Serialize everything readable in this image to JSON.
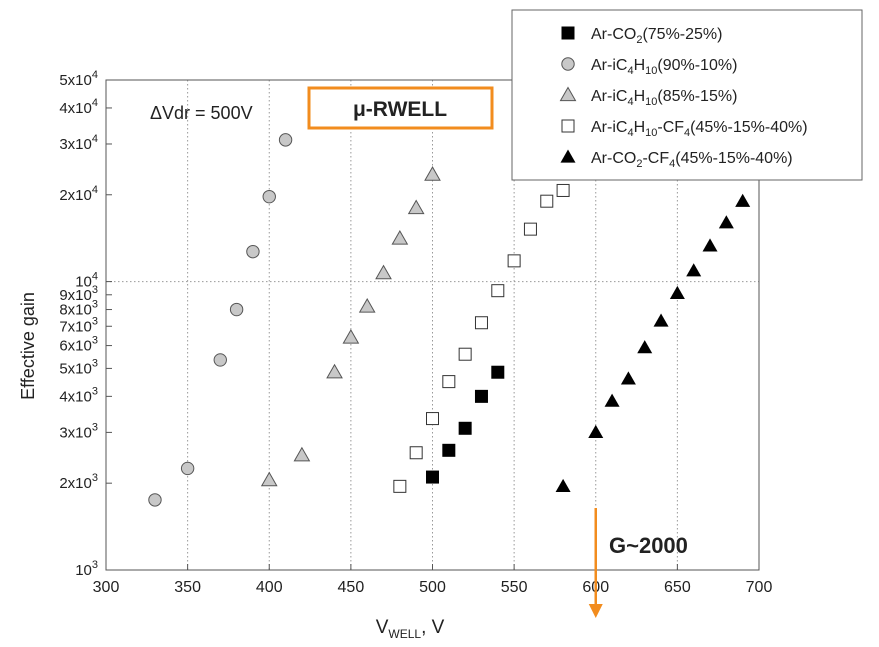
{
  "chart_data": {
    "type": "scatter",
    "xlabel": "V_WELL, V",
    "ylabel": "Effective gain",
    "xlim": [
      300,
      700
    ],
    "ylim": [
      1000,
      50000
    ],
    "yscale": "log",
    "grid": "dotted",
    "legend_position": "top-right",
    "x_ticks": [
      "300",
      "350",
      "400",
      "450",
      "500",
      "550",
      "600",
      "650",
      "700"
    ],
    "y_ticks": [
      {
        "value": 1000,
        "mantissa": "",
        "base": "10",
        "exp": "3"
      },
      {
        "value": 2000,
        "mantissa": "2x",
        "base": "10",
        "exp": "3"
      },
      {
        "value": 3000,
        "mantissa": "3x",
        "base": "10",
        "exp": "3"
      },
      {
        "value": 4000,
        "mantissa": "4x",
        "base": "10",
        "exp": "3"
      },
      {
        "value": 5000,
        "mantissa": "5x",
        "base": "10",
        "exp": "3"
      },
      {
        "value": 6000,
        "mantissa": "6x",
        "base": "10",
        "exp": "3"
      },
      {
        "value": 7000,
        "mantissa": "7x",
        "base": "10",
        "exp": "3"
      },
      {
        "value": 8000,
        "mantissa": "8x",
        "base": "10",
        "exp": "3"
      },
      {
        "value": 9000,
        "mantissa": "9x",
        "base": "10",
        "exp": "3"
      },
      {
        "value": 10000,
        "mantissa": "",
        "base": "10",
        "exp": "4"
      },
      {
        "value": 20000,
        "mantissa": "2x",
        "base": "10",
        "exp": "4"
      },
      {
        "value": 30000,
        "mantissa": "3x",
        "base": "10",
        "exp": "4"
      },
      {
        "value": 40000,
        "mantissa": "4x",
        "base": "10",
        "exp": "4"
      },
      {
        "value": 50000,
        "mantissa": "5x",
        "base": "10",
        "exp": "4"
      }
    ],
    "annotations": {
      "dvdr": "ΔVdr = 500V",
      "detector": "μ-RWELL",
      "gain_marker": "G~2000",
      "gain_marker_x": 600,
      "accent_color": "#F28C1E"
    },
    "series": [
      {
        "name": "Ar-CO2(75%-25%)",
        "name_parts": [
          {
            "t": "Ar-CO"
          },
          {
            "t": "2",
            "sub": true
          },
          {
            "t": "(75%-25%)"
          }
        ],
        "marker": "square-filled",
        "x": [
          500,
          510,
          520,
          530,
          540
        ],
        "y": [
          2100,
          2600,
          3100,
          4000,
          4850
        ]
      },
      {
        "name": "Ar-iC4H10(90%-10%)",
        "name_parts": [
          {
            "t": "Ar-iC"
          },
          {
            "t": "4",
            "sub": true
          },
          {
            "t": "H"
          },
          {
            "t": "10",
            "sub": true
          },
          {
            "t": "(90%-10%)"
          }
        ],
        "marker": "circle-gray",
        "x": [
          330,
          350,
          370,
          380,
          390,
          400,
          410
        ],
        "y": [
          1750,
          2250,
          5350,
          8000,
          12700,
          19700,
          31000
        ]
      },
      {
        "name": "Ar-iC4H10(85%-15%)",
        "name_parts": [
          {
            "t": "Ar-iC"
          },
          {
            "t": "4",
            "sub": true
          },
          {
            "t": "H"
          },
          {
            "t": "10",
            "sub": true
          },
          {
            "t": "(85%-15%)"
          }
        ],
        "marker": "triangle-gray",
        "x": [
          400,
          420,
          440,
          450,
          460,
          470,
          480,
          490,
          500
        ],
        "y": [
          2050,
          2500,
          4850,
          6400,
          8200,
          10700,
          14100,
          18000,
          23500
        ]
      },
      {
        "name": "Ar-iC4H10-CF4(45%-15%-40%)",
        "name_parts": [
          {
            "t": "Ar-iC"
          },
          {
            "t": "4",
            "sub": true
          },
          {
            "t": "H"
          },
          {
            "t": "10",
            "sub": true
          },
          {
            "t": "-CF"
          },
          {
            "t": "4",
            "sub": true
          },
          {
            "t": "(45%-15%-40%)"
          }
        ],
        "marker": "square-open",
        "x": [
          480,
          490,
          500,
          510,
          520,
          530,
          540,
          550,
          560,
          570,
          580
        ],
        "y": [
          1950,
          2550,
          3350,
          4500,
          5600,
          7200,
          9300,
          11800,
          15200,
          19000,
          20700
        ]
      },
      {
        "name": "Ar-CO2-CF4(45%-15%-40%)",
        "name_parts": [
          {
            "t": "Ar-CO"
          },
          {
            "t": "2",
            "sub": true
          },
          {
            "t": "-CF"
          },
          {
            "t": "4",
            "sub": true
          },
          {
            "t": "(45%-15%-40%)"
          }
        ],
        "marker": "triangle-filled",
        "x": [
          580,
          600,
          610,
          620,
          630,
          640,
          650,
          660,
          670,
          680,
          690
        ],
        "y": [
          1950,
          3000,
          3850,
          4600,
          5900,
          7300,
          9100,
          10900,
          13300,
          16000,
          19000
        ]
      }
    ]
  }
}
